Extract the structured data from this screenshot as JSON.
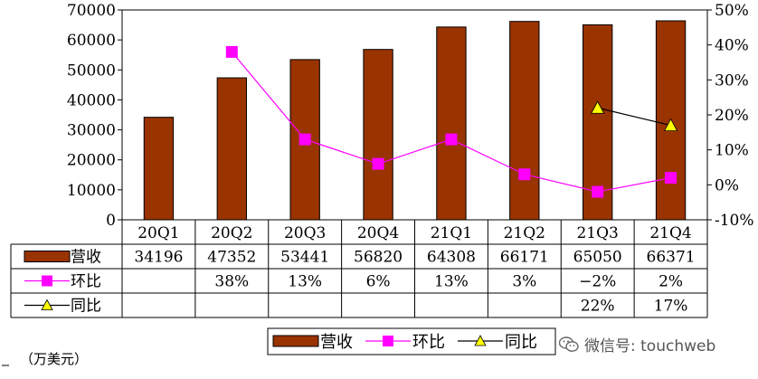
{
  "chart_data": {
    "type": "bar",
    "categories": [
      "20Q1",
      "20Q2",
      "20Q3",
      "20Q4",
      "21Q1",
      "21Q2",
      "21Q3",
      "21Q4"
    ],
    "series": [
      {
        "name": "营收",
        "type": "bar",
        "axis": "left",
        "color": "#993300",
        "values": [
          34196,
          47352,
          53441,
          56820,
          64308,
          66171,
          65050,
          66371
        ],
        "labels": [
          "34196",
          "47352",
          "53441",
          "56820",
          "64308",
          "66171",
          "65050",
          "66371"
        ]
      },
      {
        "name": "环比",
        "type": "line",
        "axis": "right",
        "color": "#ff00ff",
        "marker": "square",
        "values": [
          null,
          38,
          13,
          6,
          13,
          3,
          -2,
          2
        ],
        "labels": [
          "",
          "38%",
          "13%",
          "6%",
          "13%",
          "3%",
          "−2%",
          "2%"
        ]
      },
      {
        "name": "同比",
        "type": "line",
        "axis": "right",
        "color": "#000000",
        "marker": "triangle",
        "marker_fill": "#ffff00",
        "values": [
          null,
          null,
          null,
          null,
          null,
          null,
          22,
          17
        ],
        "labels": [
          "",
          "",
          "",
          "",
          "",
          "",
          "22%",
          "17%"
        ]
      }
    ],
    "y_left": {
      "lim": [
        0,
        70000
      ],
      "ticks": [
        "0",
        "10000",
        "20000",
        "30000",
        "40000",
        "50000",
        "60000",
        "70000"
      ]
    },
    "y_right": {
      "lim": [
        -10,
        50
      ],
      "ticks": [
        "-10%",
        "0%",
        "10%",
        "20%",
        "30%",
        "40%",
        "50%"
      ]
    },
    "grid": false,
    "legend": {
      "position": "bottom",
      "entries": [
        "营收",
        "环比",
        "同比"
      ]
    },
    "data_table": true
  },
  "unit_note": "（万美元）",
  "watermark": "微信号: touchweb"
}
